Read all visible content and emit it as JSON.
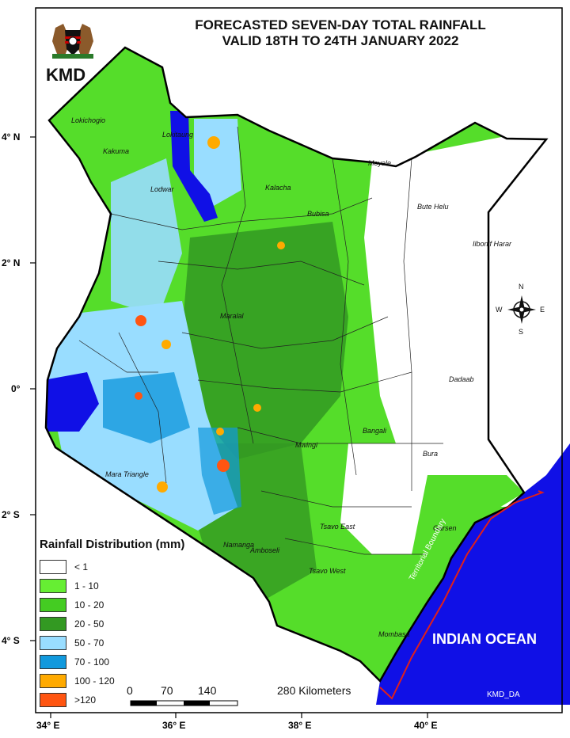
{
  "title": {
    "line1": "FORECASTED SEVEN-DAY TOTAL RAINFALL",
    "line2": "VALID  18TH  TO 24TH JANUARY 2022"
  },
  "agency": "KMD",
  "credit": "KMD_DA",
  "ocean_label": "INDIAN OCEAN",
  "boundary_label": "Territorial Boundary",
  "latitude_ticks": [
    "4° N",
    "2° N",
    "0°",
    "2° S",
    "4° S"
  ],
  "longitude_ticks": [
    "34° E",
    "36° E",
    "38° E",
    "40° E"
  ],
  "compass": {
    "n": "N",
    "s": "S",
    "e": "E",
    "w": "W"
  },
  "legend": {
    "title": "Rainfall Distribution (mm)",
    "classes": [
      {
        "label": "< 1",
        "color": "#ffffff"
      },
      {
        "label": "1 - 10",
        "color": "#66ee33"
      },
      {
        "label": "10 - 20",
        "color": "#44cc22"
      },
      {
        "label": "20 - 50",
        "color": "#339922"
      },
      {
        "label": "50 - 70",
        "color": "#99ddff"
      },
      {
        "label": "70 - 100",
        "color": "#1199dd"
      },
      {
        "label": "100 - 120",
        "color": "#ffaa00"
      },
      {
        "label": ">120",
        "color": "#ff5511"
      }
    ]
  },
  "scale_bar": {
    "ticks": [
      "0",
      "70",
      "140",
      "280 Kilometers"
    ]
  },
  "places": [
    "Lokichogio",
    "Lokitaung",
    "Kakuma",
    "Lodwar",
    "Moyale",
    "Kalacha",
    "Bubisa",
    "Bute Helu",
    "Ilbonif Harar",
    "Maralal",
    "Dadaab",
    "Bangali",
    "Mwingi",
    "Bura",
    "Garsen",
    "Tsavo East",
    "Tsavo West",
    "Amboseli",
    "Namanga",
    "Mara Triangle",
    "Mombasa"
  ],
  "colors": {
    "ocean": "#1010e6",
    "boundary": "#e0201a"
  }
}
